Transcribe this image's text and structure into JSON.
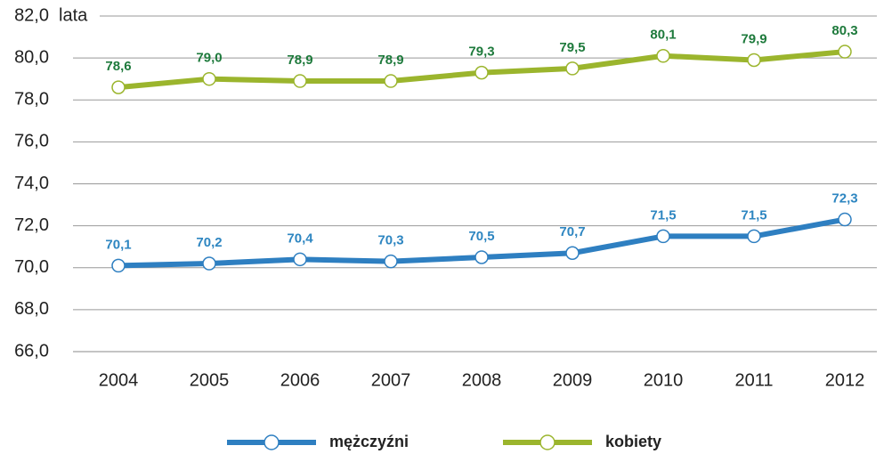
{
  "chart_data": {
    "type": "line",
    "y_unit": "lata",
    "categories": [
      "2004",
      "2005",
      "2006",
      "2007",
      "2008",
      "2009",
      "2010",
      "2011",
      "2012"
    ],
    "series": [
      {
        "name": "mężczyźni",
        "color": "#2e7fc1",
        "label_color": "#2e86c1",
        "values": [
          70.1,
          70.2,
          70.4,
          70.3,
          70.5,
          70.7,
          71.5,
          71.5,
          72.3
        ],
        "value_labels": [
          "70,1",
          "70,2",
          "70,4",
          "70,3",
          "70,5",
          "70,7",
          "71,5",
          "71,5",
          "72,3"
        ]
      },
      {
        "name": "kobiety",
        "color": "#9bb52d",
        "label_color": "#1e7a3c",
        "values": [
          78.6,
          79.0,
          78.9,
          78.9,
          79.3,
          79.5,
          80.1,
          79.9,
          80.3
        ],
        "value_labels": [
          "78,6",
          "79,0",
          "78,9",
          "78,9",
          "79,3",
          "79,5",
          "80,1",
          "79,9",
          "80,3"
        ]
      }
    ],
    "ylim": [
      66,
      82
    ],
    "yticks": [
      {
        "value": 66,
        "label": "66,0"
      },
      {
        "value": 68,
        "label": "68,0"
      },
      {
        "value": 70,
        "label": "70,0"
      },
      {
        "value": 72,
        "label": "72,0"
      },
      {
        "value": 74,
        "label": "74,0"
      },
      {
        "value": 76,
        "label": "76,0"
      },
      {
        "value": 78,
        "label": "78,0"
      },
      {
        "value": 80,
        "label": "80,0"
      },
      {
        "value": 82,
        "label": "82,0"
      }
    ],
    "grid": true,
    "legend": "bottom"
  }
}
